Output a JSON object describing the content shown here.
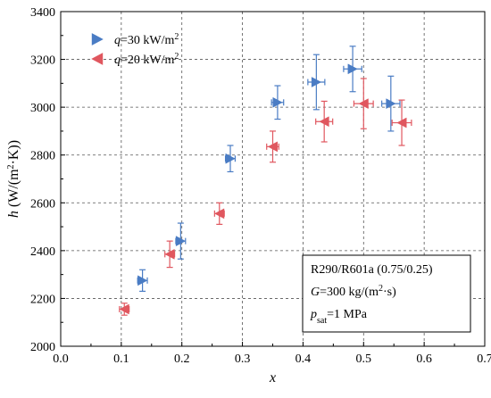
{
  "chart_data": {
    "type": "scatter",
    "x_label": "x",
    "y_label_parts": [
      "h",
      " (W/(m",
      "2",
      "·K))"
    ],
    "xlim": [
      0.0,
      0.7
    ],
    "ylim": [
      2000,
      3400
    ],
    "x_ticks": [
      "0.0",
      "0.1",
      "0.2",
      "0.3",
      "0.4",
      "0.5",
      "0.6",
      "0.7"
    ],
    "y_ticks": [
      "2000",
      "2200",
      "2400",
      "2600",
      "2800",
      "3000",
      "3200",
      "3400"
    ],
    "grid": true,
    "legend_position": "top-left",
    "series": [
      {
        "legend_parts": [
          "q",
          "=30 kW/m",
          "2"
        ],
        "color": "#4A7CC4",
        "marker": "triangle-right",
        "points": [
          {
            "x": 0.135,
            "y": 2275,
            "xerr": 0.008,
            "yerr": 45
          },
          {
            "x": 0.198,
            "y": 2440,
            "xerr": 0.008,
            "yerr": 75
          },
          {
            "x": 0.28,
            "y": 2785,
            "xerr": 0.008,
            "yerr": 55
          },
          {
            "x": 0.358,
            "y": 3020,
            "xerr": 0.01,
            "yerr": 70
          },
          {
            "x": 0.422,
            "y": 3105,
            "xerr": 0.014,
            "yerr": 115
          },
          {
            "x": 0.482,
            "y": 3160,
            "xerr": 0.015,
            "yerr": 95
          },
          {
            "x": 0.545,
            "y": 3015,
            "xerr": 0.015,
            "yerr": 115
          }
        ]
      },
      {
        "legend_parts": [
          "q",
          "=20 kW/m",
          "2"
        ],
        "color": "#E0575F",
        "marker": "triangle-left",
        "points": [
          {
            "x": 0.105,
            "y": 2155,
            "xerr": 0.008,
            "yerr": 25
          },
          {
            "x": 0.18,
            "y": 2385,
            "xerr": 0.008,
            "yerr": 55
          },
          {
            "x": 0.262,
            "y": 2555,
            "xerr": 0.008,
            "yerr": 45
          },
          {
            "x": 0.35,
            "y": 2835,
            "xerr": 0.01,
            "yerr": 65
          },
          {
            "x": 0.435,
            "y": 2940,
            "xerr": 0.014,
            "yerr": 85
          },
          {
            "x": 0.5,
            "y": 3015,
            "xerr": 0.016,
            "yerr": 105
          },
          {
            "x": 0.563,
            "y": 2935,
            "xerr": 0.016,
            "yerr": 95
          }
        ]
      }
    ],
    "annotation": {
      "line1": "R290/R601a (0.75/0.25)",
      "line2_parts": [
        "G",
        "=300 kg/(m",
        "2",
        "·s)"
      ],
      "line3_parts": [
        "p",
        "sat",
        "=1 MPa"
      ]
    }
  }
}
